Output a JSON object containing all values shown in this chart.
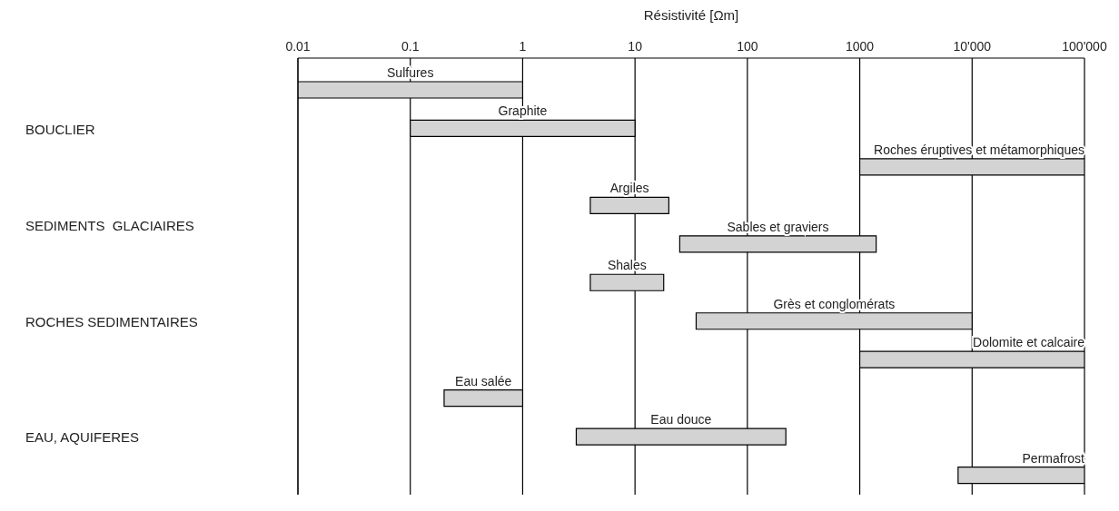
{
  "chart_data": {
    "type": "bar",
    "orientation": "horizontal",
    "xlabel": "Résistivité [Ωm]",
    "categories": [
      "Sulfures",
      "Graphite",
      "Roches éruptives et métamorphiques",
      "Argiles",
      "Sables et graviers",
      "Shales",
      "Grès et conglomérats",
      "Dolomite et calcaire",
      "Eau salée",
      "Eau douce",
      "Permafrost"
    ],
    "base": [
      0.01,
      0.1,
      1000,
      4,
      25,
      4,
      35,
      1000,
      0.2,
      3,
      7500
    ],
    "values": [
      0.99,
      9.9,
      99000,
      16,
      1375,
      14,
      9965,
      99000,
      0.8,
      217,
      92500
    ],
    "color": "#d3d3d3",
    "log": "x",
    "xlim": [
      0.01,
      100000
    ],
    "xticks": [
      0.01,
      0.1,
      1,
      10,
      100,
      1000,
      {
        "value": 10000,
        "label": "10'000"
      },
      {
        "value": 100000,
        "label": "100'000"
      }
    ],
    "grid": "x",
    "tick_labels": "x",
    "legend": false,
    "annotations": [
      "BOUCLIER",
      "SEDIMENTS  GLACIAIRES",
      "ROCHES SEDIMENTAIRES",
      "EAU, AQUIFERES"
    ]
  }
}
